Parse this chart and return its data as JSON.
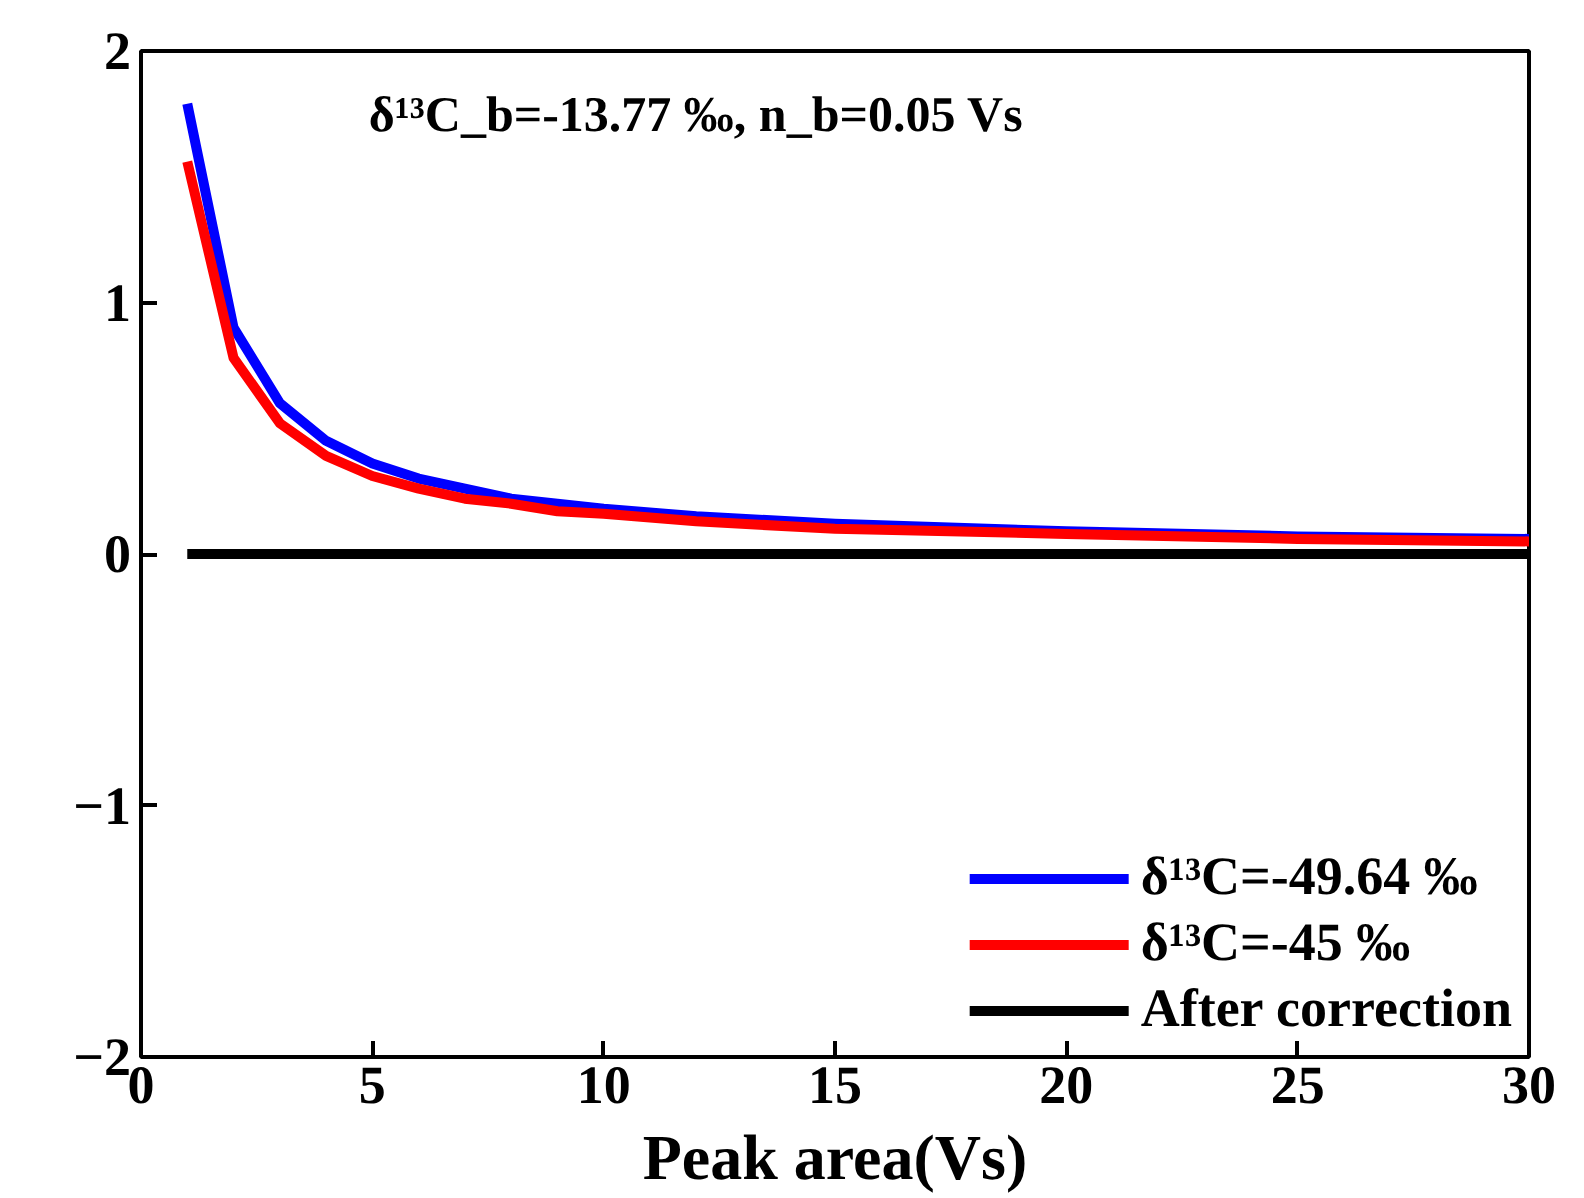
{
  "chart_data": {
    "type": "line",
    "xlabel": "Peak area(Vs)",
    "annotations": [
      "δ¹³C_b=-13.77 ‰, n_b=0.05 Vs"
    ],
    "x": [
      1,
      2,
      3,
      4,
      5,
      6,
      7,
      8,
      9,
      10,
      12,
      15,
      20,
      25,
      30
    ],
    "series": [
      {
        "name": "δ¹³C=-49.64 ‰",
        "color": "#0000ff",
        "values": [
          1.79,
          0.9,
          0.6,
          0.45,
          0.36,
          0.3,
          0.26,
          0.22,
          0.2,
          0.18,
          0.15,
          0.12,
          0.09,
          0.07,
          0.06
        ]
      },
      {
        "name": "δ¹³C=-45 ‰",
        "color": "#ff0000",
        "values": [
          1.56,
          0.78,
          0.52,
          0.39,
          0.31,
          0.26,
          0.22,
          0.2,
          0.17,
          0.16,
          0.13,
          0.1,
          0.08,
          0.06,
          0.05
        ]
      },
      {
        "name": "After correction",
        "color": "#000000",
        "values": [
          0,
          0,
          0,
          0,
          0,
          0,
          0,
          0,
          0,
          0,
          0,
          0,
          0,
          0,
          0
        ]
      }
    ],
    "xlim": [
      0,
      30
    ],
    "ylim": [
      -2,
      2
    ],
    "xticks": [
      0,
      5,
      10,
      15,
      20,
      25,
      30
    ],
    "yticks": [
      -2,
      -1,
      0,
      1,
      2
    ],
    "grid": false,
    "legend": "bottom right",
    "marker": "none",
    "line_style": "solid"
  }
}
